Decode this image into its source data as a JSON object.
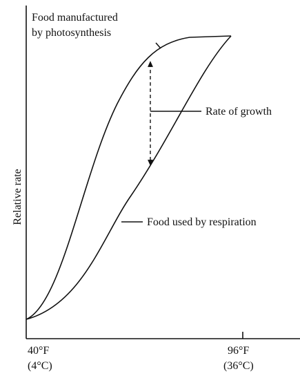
{
  "title": [
    "Food manufactured",
    "by photosynthesis"
  ],
  "labels": {
    "growth": "Rate of growth",
    "respiration": "Food used by respiration"
  },
  "y_axis": "Relative rate",
  "x_axis": {
    "start": [
      "40°F",
      "(4°C)"
    ],
    "end": [
      "96°F",
      "(36°C)"
    ]
  }
}
